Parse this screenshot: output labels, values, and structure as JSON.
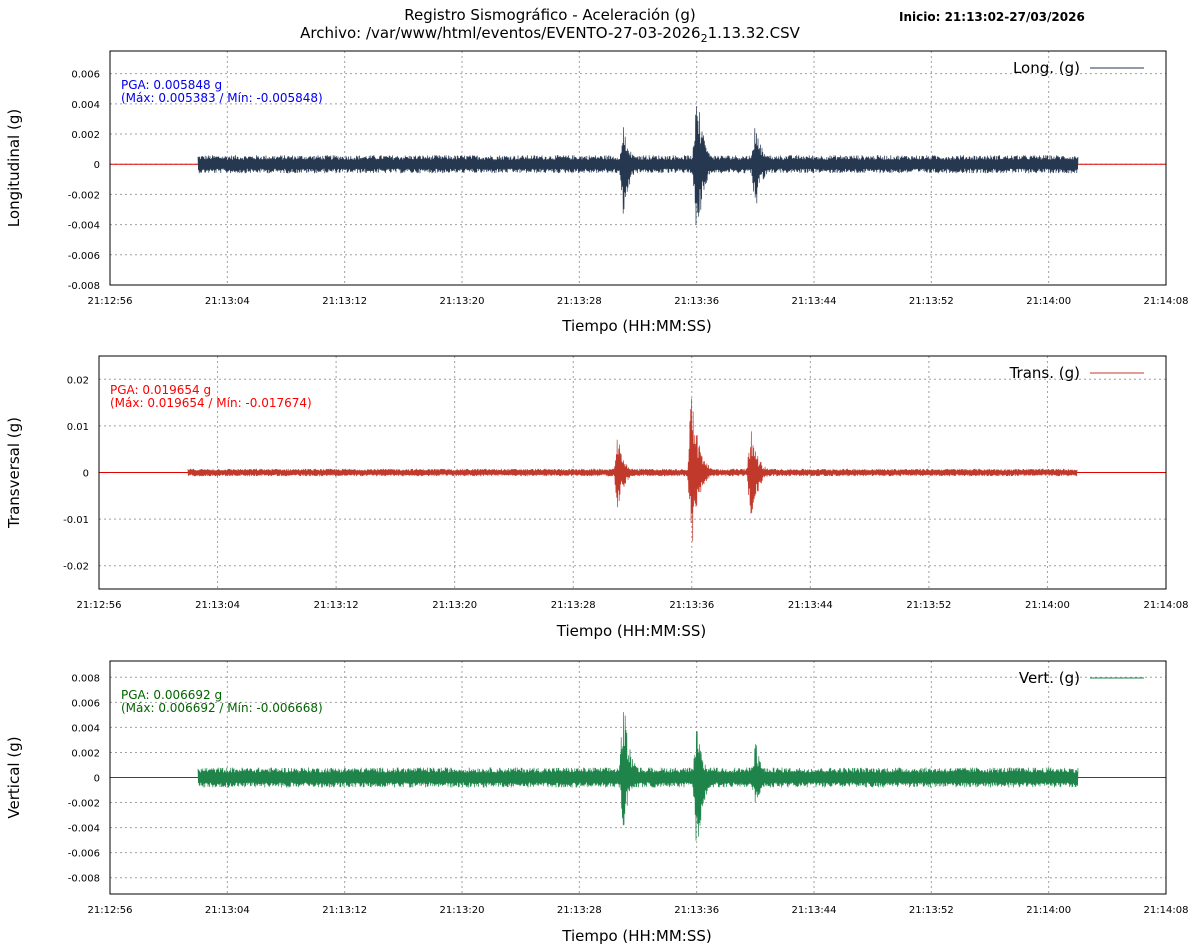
{
  "header": {
    "title_line1": "Registro Sismográfico - Aceleración (g)",
    "title_line2": "Archivo: /var/www/html/eventos/EVENTO-27-03-2026",
    "title_line2_sub": "2",
    "title_line2_tail": "1.13.32.CSV",
    "start_label": "Inicio: 21:13:02-27/03/2026"
  },
  "chart_data": [
    {
      "type": "line",
      "series": [
        {
          "name": "Long. (g)",
          "color": "#263850"
        }
      ],
      "ylabel": "Longitudinal (g)",
      "xlabel": "Tiempo (HH:MM:SS)",
      "ylim": [
        -0.008,
        0.0075
      ],
      "yticks": [
        0.006,
        0.004,
        0.002,
        0,
        -0.002,
        -0.004,
        -0.006,
        -0.008
      ],
      "ytick_labels": [
        "0.006",
        "0.004",
        "0.002",
        "0",
        "-0.002",
        "-0.004",
        "-0.006",
        "-0.008"
      ],
      "xlim_seconds_after_start": [
        0,
        72
      ],
      "xticks": [
        "21:12:56",
        "21:13:04",
        "21:13:12",
        "21:13:20",
        "21:13:28",
        "21:13:36",
        "21:13:44",
        "21:13:52",
        "21:14:00",
        "21:14:08"
      ],
      "record_span": [
        "21:13:02",
        "21:14:02"
      ],
      "noise_amplitude": 0.0006,
      "bursts": [
        {
          "time": "21:13:31",
          "max": 0.0026,
          "min": -0.0035
        },
        {
          "time": "21:13:36",
          "max": 0.0054,
          "min": -0.0058
        },
        {
          "time": "21:13:40",
          "max": 0.003,
          "min": -0.0035
        }
      ],
      "pga_line1": "PGA: 0.005848 g",
      "pga_line2": "(Máx: 0.005383 / Mín: -0.005848)",
      "pga_color": "#0000ee",
      "grid": true,
      "legend_position": "top-right"
    },
    {
      "type": "line",
      "series": [
        {
          "name": "Trans. (g)",
          "color": "#c0392b"
        }
      ],
      "ylabel": "Transversal (g)",
      "xlabel": "Tiempo (HH:MM:SS)",
      "ylim": [
        -0.025,
        0.025
      ],
      "yticks": [
        0.02,
        0.01,
        0,
        -0.01,
        -0.02
      ],
      "ytick_labels": [
        "0.02",
        "0.01",
        "0",
        "-0.01",
        "-0.02"
      ],
      "xlim_seconds_after_start": [
        0,
        72
      ],
      "xticks": [
        "21:12:56",
        "21:13:04",
        "21:13:12",
        "21:13:20",
        "21:13:28",
        "21:13:36",
        "21:13:44",
        "21:13:52",
        "21:14:00",
        "21:14:08"
      ],
      "record_span": [
        "21:13:02",
        "21:14:02"
      ],
      "noise_amplitude": 0.0008,
      "bursts": [
        {
          "time": "21:13:31",
          "max": 0.008,
          "min": -0.008
        },
        {
          "time": "21:13:36",
          "max": 0.0197,
          "min": -0.0177
        },
        {
          "time": "21:13:40",
          "max": 0.01,
          "min": -0.012
        }
      ],
      "pga_line1": "PGA: 0.019654 g",
      "pga_line2": "(Máx: 0.019654 / Mín: -0.017674)",
      "pga_color": "#ff0000",
      "grid": true,
      "legend_position": "top-right"
    },
    {
      "type": "line",
      "series": [
        {
          "name": "Vert. (g)",
          "color": "#1e8449"
        }
      ],
      "ylabel": "Vertical (g)",
      "xlabel": "Tiempo (HH:MM:SS)",
      "ylim": [
        -0.0093,
        0.0093
      ],
      "yticks": [
        0.008,
        0.006,
        0.004,
        0.002,
        0,
        -0.002,
        -0.004,
        -0.006,
        -0.008
      ],
      "ytick_labels": [
        "0.008",
        "0.006",
        "0.004",
        "0.002",
        "0",
        "-0.002",
        "-0.004",
        "-0.006",
        "-0.008"
      ],
      "xlim_seconds_after_start": [
        0,
        72
      ],
      "xticks": [
        "21:12:56",
        "21:13:04",
        "21:13:12",
        "21:13:20",
        "21:13:28",
        "21:13:36",
        "21:13:44",
        "21:13:52",
        "21:14:00",
        "21:14:08"
      ],
      "record_span": [
        "21:13:02",
        "21:14:02"
      ],
      "noise_amplitude": 0.0008,
      "bursts": [
        {
          "time": "21:13:31",
          "max": 0.0067,
          "min": -0.0042
        },
        {
          "time": "21:13:36",
          "max": 0.0043,
          "min": -0.0067
        },
        {
          "time": "21:13:40",
          "max": 0.0031,
          "min": -0.0025
        }
      ],
      "pga_line1": "PGA: 0.006692 g",
      "pga_line2": "(Máx: 0.006692 / Mín: -0.006668)",
      "pga_color": "#006400",
      "grid": true,
      "legend_position": "top-right"
    }
  ]
}
